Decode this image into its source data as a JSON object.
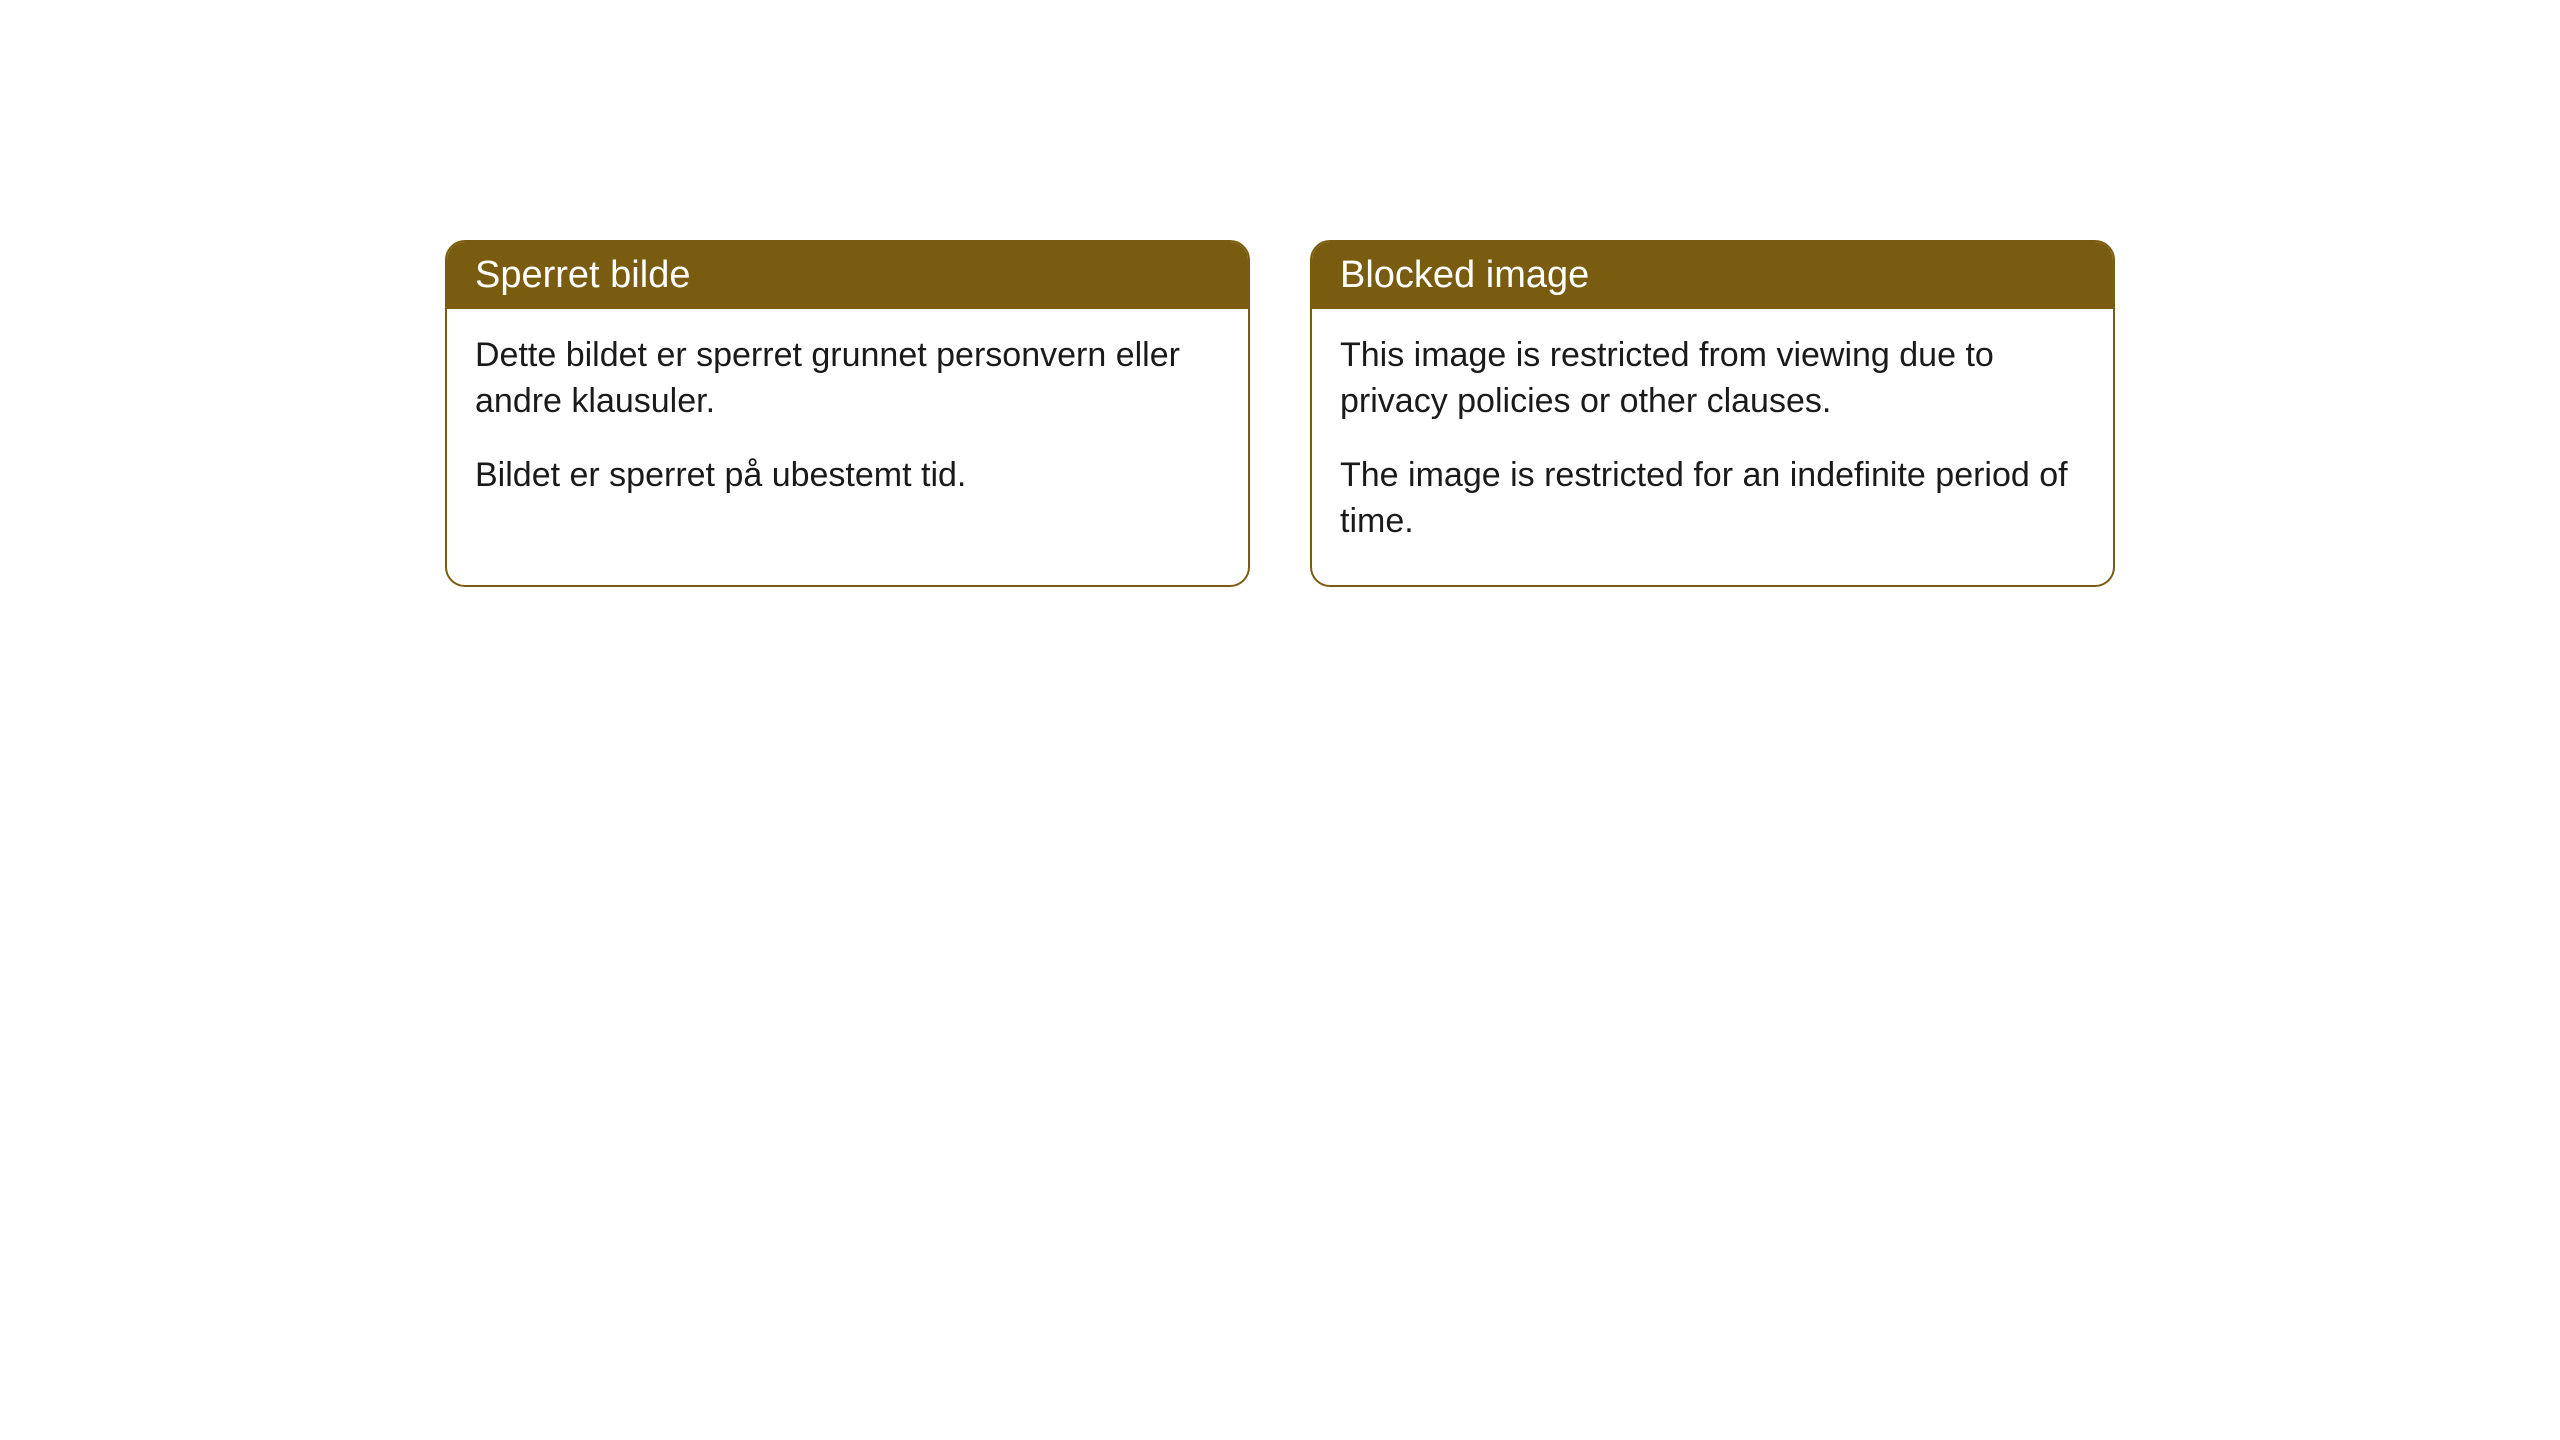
{
  "cards": [
    {
      "title": "Sperret bilde",
      "p1": "Dette bildet er sperret grunnet personvern eller andre klausuler.",
      "p2": "Bildet er sperret på ubestemt tid."
    },
    {
      "title": "Blocked image",
      "p1": "This image is restricted from viewing due to privacy policies or other clauses.",
      "p2": "The image is restricted for an indefinite period of time."
    }
  ],
  "style": {
    "header_bg": "#7a5c10",
    "header_text": "#ffffff",
    "border_color": "#7a5c10",
    "body_bg": "#ffffff",
    "body_text": "#1a1a1a",
    "border_radius": 20,
    "title_fontsize": 38,
    "body_fontsize": 34
  }
}
